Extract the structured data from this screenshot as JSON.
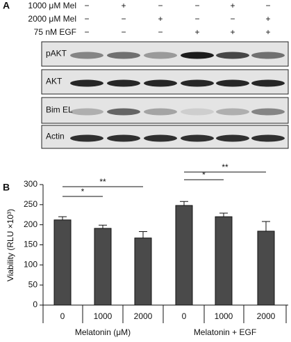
{
  "blot": {
    "panel_label": "A",
    "treatments": [
      {
        "label": "1000 μM Mel",
        "signs": [
          "−",
          "+",
          "−",
          "−",
          "+",
          "−"
        ]
      },
      {
        "label": "2000 μM Mel",
        "signs": [
          "−",
          "−",
          "+",
          "−",
          "−",
          "+"
        ]
      },
      {
        "label": "75 nM EGF",
        "signs": [
          "−",
          "−",
          "−",
          "+",
          "+",
          "+"
        ]
      }
    ],
    "rows": [
      "pAKT",
      "AKT",
      "Bim EL",
      "Actin"
    ]
  },
  "chart_data": {
    "type": "bar",
    "panel_label": "B",
    "ylabel": "Viability (RLU ×10³)",
    "categories": [
      "0",
      "1000",
      "2000",
      "0",
      "1000",
      "2000"
    ],
    "groups": [
      "Melatonin (μM)",
      "Melatonin + EGF"
    ],
    "values": [
      212,
      191,
      167,
      248,
      220,
      184
    ],
    "errors": [
      8,
      8,
      16,
      10,
      9,
      24
    ],
    "color": "#4a4a4a",
    "ylim": [
      0,
      300
    ],
    "yticks": [
      0,
      50,
      100,
      150,
      200,
      250,
      300
    ],
    "annotations": [
      "*",
      "**",
      "*",
      "**"
    ]
  }
}
